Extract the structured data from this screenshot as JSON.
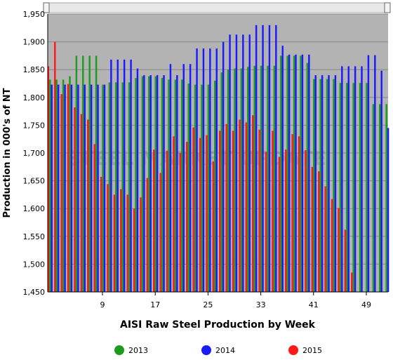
{
  "chart_data": {
    "type": "bar",
    "x_label": "AISI Raw Steel Production by Week",
    "y_label": "Production in 000's of NT",
    "watermark": "STEEL MARKET UPDATE",
    "x": [
      1,
      2,
      3,
      4,
      5,
      6,
      7,
      8,
      9,
      10,
      11,
      12,
      13,
      14,
      15,
      16,
      17,
      18,
      19,
      20,
      21,
      22,
      23,
      24,
      25,
      26,
      27,
      28,
      29,
      30,
      31,
      32,
      33,
      34,
      35,
      36,
      37,
      38,
      39,
      40,
      41,
      42,
      43,
      44,
      45,
      46,
      47,
      48,
      49,
      50,
      51,
      52
    ],
    "xlim": [
      0.7,
      52.3
    ],
    "xticks": [
      9,
      17,
      25,
      33,
      41,
      49
    ],
    "ylim": [
      1450,
      1950
    ],
    "yticks": [
      {
        "value": 1450,
        "label": "1,450"
      },
      {
        "value": 1500,
        "label": "1,500"
      },
      {
        "value": 1550,
        "label": "1,550"
      },
      {
        "value": 1600,
        "label": "1,600"
      },
      {
        "value": 1650,
        "label": "1,650"
      },
      {
        "value": 1700,
        "label": "1,700"
      },
      {
        "value": 1750,
        "label": "1,750"
      },
      {
        "value": 1800,
        "label": "1,800"
      },
      {
        "value": 1850,
        "label": "1,850"
      },
      {
        "value": 1900,
        "label": "1,900"
      },
      {
        "value": 1950,
        "label": "1,950"
      }
    ],
    "grid": true,
    "legend": "bottom",
    "series": [
      {
        "name": "2013",
        "color": "#1e9a1e",
        "values": [
          1832,
          1832,
          1832,
          1838,
          1875,
          1875,
          1875,
          1875,
          1823,
          1827,
          1827,
          1827,
          1827,
          1835,
          1838,
          1838,
          1838,
          1835,
          1832,
          1832,
          1832,
          1825,
          1823,
          1823,
          1823,
          1830,
          1845,
          1850,
          1852,
          1852,
          1855,
          1857,
          1857,
          1857,
          1857,
          1875,
          1875,
          1875,
          1875,
          1862,
          1833,
          1833,
          1833,
          1833,
          1826,
          1826,
          1826,
          1826,
          1826,
          1788,
          1788,
          1788
        ]
      },
      {
        "name": "2014",
        "color": "#1a1aff",
        "values": [
          1823,
          1823,
          1823,
          1823,
          1823,
          1823,
          1823,
          1823,
          1823,
          1868,
          1868,
          1868,
          1868,
          1852,
          1840,
          1840,
          1840,
          1840,
          1860,
          1840,
          1860,
          1860,
          1888,
          1888,
          1888,
          1888,
          1900,
          1913,
          1913,
          1913,
          1913,
          1930,
          1930,
          1930,
          1930,
          1893,
          1877,
          1877,
          1877,
          1877,
          1840,
          1840,
          1840,
          1840,
          1856,
          1856,
          1856,
          1856,
          1876,
          1876,
          1848,
          1745
        ]
      },
      {
        "name": "2015",
        "color": "#ff1a1a",
        "values": [
          1856,
          1900,
          1806,
          1824,
          1782,
          1770,
          1760,
          1716,
          1657,
          1644,
          1625,
          1635,
          1625,
          1600,
          1620,
          1655,
          1706,
          1664,
          1704,
          1730,
          1700,
          1720,
          1746,
          1727,
          1732,
          1685,
          1740,
          1752,
          1740,
          1760,
          1755,
          1768,
          1742,
          1702,
          1740,
          1693,
          1706,
          1734,
          1730,
          1705,
          1675,
          1667,
          1640,
          1617,
          1601,
          1562,
          1485,
          null,
          null,
          null,
          null,
          null
        ]
      }
    ]
  }
}
